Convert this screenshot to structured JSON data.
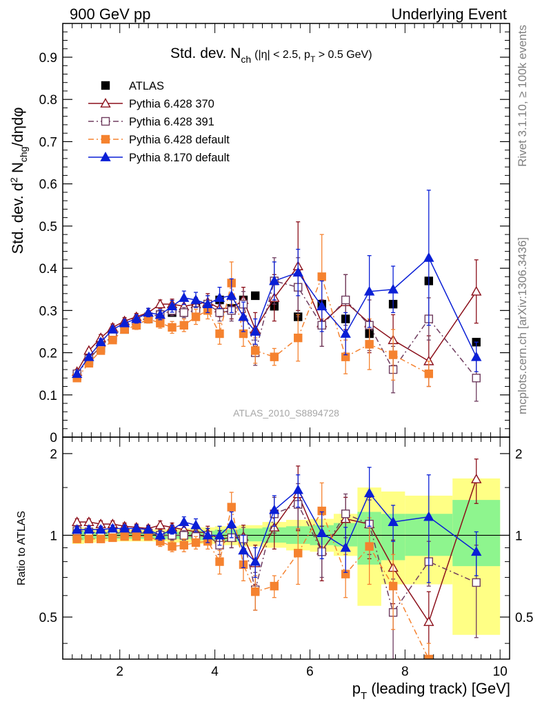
{
  "header": {
    "left": "900 GeV pp",
    "right": "Underlying Event"
  },
  "side_labels": {
    "rivet": "Rivet 3.1.10, ≥ 100k events",
    "mcplots": "mcplots.cern.ch [arXiv:1306.3436]"
  },
  "chart_data": [
    {
      "type": "scatter",
      "panel": "main",
      "title_main": "Std. dev. N",
      "title_sub": "ch",
      "title_cond": "(|η| < 2.5, p",
      "title_cond_sub": "T",
      "title_cond_end": " > 0.5 GeV)",
      "ylabel_parts": [
        "Std. dev. d",
        "2",
        " N",
        "chg",
        "/dηdφ"
      ],
      "xlim": [
        0.8,
        10.2
      ],
      "ylim": [
        0,
        0.98
      ],
      "yticks": [
        0,
        0.1,
        0.2,
        0.3,
        0.4,
        0.5,
        0.6,
        0.7,
        0.8,
        0.9
      ],
      "ytick_labels": [
        "0",
        "0.1",
        "0.2",
        "0.3",
        "0.4",
        "0.5",
        "0.6",
        "0.7",
        "0.8",
        "0.9"
      ],
      "watermark": "ATLAS_2010_S8894728",
      "legend": [
        {
          "key": "atlas",
          "label": "ATLAS"
        },
        {
          "key": "p370",
          "label": "Pythia 6.428 370"
        },
        {
          "key": "p391",
          "label": "Pythia 6.428 391"
        },
        {
          "key": "p6def",
          "label": "Pythia 6.428 default"
        },
        {
          "key": "p8def",
          "label": "Pythia 8.170 default"
        }
      ],
      "series": [
        {
          "key": "atlas",
          "name": "ATLAS",
          "color": "#000000",
          "marker": "square-filled",
          "line": "none",
          "x": [
            1.1,
            1.35,
            1.6,
            1.85,
            2.1,
            2.35,
            2.6,
            2.85,
            3.1,
            3.35,
            3.6,
            3.85,
            4.1,
            4.35,
            4.6,
            4.85,
            5.25,
            5.75,
            6.25,
            6.75,
            7.25,
            7.75,
            8.5,
            9.5
          ],
          "y": [
            0.145,
            0.18,
            0.21,
            0.235,
            0.255,
            0.265,
            0.28,
            0.29,
            0.295,
            0.295,
            0.305,
            0.315,
            0.325,
            0.305,
            0.325,
            0.335,
            0.31,
            0.285,
            0.315,
            0.28,
            0.245,
            0.315,
            0.37,
            0.225
          ],
          "err": [
            0,
            0,
            0,
            0,
            0,
            0,
            0,
            0,
            0,
            0,
            0,
            0,
            0,
            0,
            0,
            0,
            0,
            0,
            0,
            0,
            0,
            0,
            0,
            0
          ]
        },
        {
          "key": "p370",
          "name": "Pythia 6.428 370",
          "color": "#8b0f1a",
          "marker": "triangle-open",
          "line": "solid",
          "x": [
            1.1,
            1.35,
            1.6,
            1.85,
            2.1,
            2.35,
            2.6,
            2.85,
            3.1,
            3.35,
            3.6,
            3.85,
            4.1,
            4.35,
            4.6,
            4.85,
            5.25,
            5.75,
            6.25,
            6.75,
            7.25,
            7.75,
            8.5,
            9.5
          ],
          "y": [
            0.155,
            0.205,
            0.235,
            0.26,
            0.275,
            0.285,
            0.295,
            0.315,
            0.315,
            0.31,
            0.315,
            0.32,
            0.305,
            0.305,
            0.325,
            0.255,
            0.33,
            0.405,
            0.27,
            0.32,
            0.27,
            0.23,
            0.18,
            0.345
          ],
          "err": [
            0.005,
            0.005,
            0.008,
            0.008,
            0.008,
            0.008,
            0.01,
            0.01,
            0.012,
            0.012,
            0.015,
            0.02,
            0.02,
            0.025,
            0.03,
            0.04,
            0.055,
            0.105,
            0.055,
            0.065,
            0.07,
            0.06,
            0.06,
            0.075
          ]
        },
        {
          "key": "p391",
          "name": "Pythia 6.428 391",
          "color": "#6e3b5e",
          "marker": "square-open",
          "line": "dashdot",
          "x": [
            1.1,
            1.35,
            1.6,
            1.85,
            2.1,
            2.35,
            2.6,
            2.85,
            3.1,
            3.35,
            3.6,
            3.85,
            4.1,
            4.35,
            4.6,
            4.85,
            5.25,
            5.75,
            6.25,
            6.75,
            7.25,
            7.75,
            8.5,
            9.5
          ],
          "y": [
            0.15,
            0.185,
            0.215,
            0.24,
            0.26,
            0.27,
            0.285,
            0.29,
            0.3,
            0.295,
            0.3,
            0.315,
            0.295,
            0.3,
            0.315,
            0.2,
            0.37,
            0.355,
            0.265,
            0.325,
            0.265,
            0.16,
            0.28,
            0.14
          ],
          "err": [
            0.005,
            0.005,
            0.008,
            0.008,
            0.008,
            0.008,
            0.01,
            0.01,
            0.012,
            0.012,
            0.015,
            0.02,
            0.02,
            0.025,
            0.03,
            0.03,
            0.055,
            0.07,
            0.05,
            0.06,
            0.06,
            0.055,
            0.05,
            0.055
          ]
        },
        {
          "key": "p6def",
          "name": "Pythia 6.428 default",
          "color": "#f5822f",
          "marker": "square-filled",
          "line": "dashdot",
          "x": [
            1.1,
            1.35,
            1.6,
            1.85,
            2.1,
            2.35,
            2.6,
            2.85,
            3.1,
            3.35,
            3.6,
            3.85,
            4.1,
            4.35,
            4.6,
            4.85,
            5.25,
            5.75,
            6.25,
            6.75,
            7.25,
            7.75,
            8.5,
            9.5
          ],
          "y": [
            0.14,
            0.175,
            0.205,
            0.23,
            0.255,
            0.265,
            0.28,
            0.27,
            0.26,
            0.265,
            0.285,
            0.3,
            0.245,
            0.365,
            0.245,
            0.205,
            0.19,
            0.235,
            0.38,
            0.19,
            0.22,
            0.195,
            0.15,
            null
          ],
          "err": [
            0.005,
            0.005,
            0.008,
            0.008,
            0.008,
            0.01,
            0.01,
            0.012,
            0.014,
            0.015,
            0.018,
            0.02,
            0.025,
            0.05,
            0.03,
            0.03,
            0.02,
            0.055,
            0.1,
            0.04,
            0.06,
            0.06,
            0.03,
            0
          ]
        },
        {
          "key": "p8def",
          "name": "Pythia 8.170 default",
          "color": "#0a1fd6",
          "marker": "triangle-filled",
          "line": "solid",
          "x": [
            1.1,
            1.35,
            1.6,
            1.85,
            2.1,
            2.35,
            2.6,
            2.85,
            3.1,
            3.35,
            3.6,
            3.85,
            4.1,
            4.35,
            4.6,
            4.85,
            5.25,
            5.75,
            6.25,
            6.75,
            7.25,
            7.75,
            8.5,
            9.5
          ],
          "y": [
            0.15,
            0.19,
            0.225,
            0.255,
            0.27,
            0.28,
            0.295,
            0.29,
            0.31,
            0.33,
            0.325,
            0.315,
            0.33,
            0.335,
            0.285,
            0.25,
            0.37,
            0.39,
            0.31,
            0.245,
            0.345,
            0.35,
            0.425,
            0.19
          ],
          "err": [
            0.005,
            0.005,
            0.008,
            0.008,
            0.008,
            0.01,
            0.01,
            0.012,
            0.014,
            0.016,
            0.018,
            0.02,
            0.025,
            0.04,
            0.035,
            0.03,
            0.045,
            0.055,
            0.06,
            0.05,
            0.085,
            0.055,
            0.16,
            0.035
          ]
        }
      ]
    },
    {
      "type": "scatter",
      "panel": "ratio",
      "ylabel": "Ratio to ATLAS",
      "xlabel_main": "p",
      "xlabel_sub": "T",
      "xlabel_rest": " (leading track) [GeV]",
      "xlim": [
        0.8,
        10.2
      ],
      "ylim": [
        0.35,
        2.3
      ],
      "xticks": [
        2,
        4,
        6,
        8,
        10
      ],
      "xtick_labels": [
        "2",
        "4",
        "6",
        "8",
        "10"
      ],
      "yticks": [
        0.5,
        1,
        2
      ],
      "ytick_labels": [
        "0.5",
        "1",
        "2"
      ],
      "bands": [
        {
          "x0": 1.0,
          "x1": 1.25,
          "y0": 0.93,
          "y1": 1.07,
          "g0": 0.96,
          "g1": 1.04
        },
        {
          "x0": 1.25,
          "x1": 1.5,
          "y0": 0.94,
          "y1": 1.06,
          "g0": 0.97,
          "g1": 1.03
        },
        {
          "x0": 1.5,
          "x1": 3.0,
          "y0": 0.95,
          "y1": 1.05,
          "g0": 0.97,
          "g1": 1.03
        },
        {
          "x0": 3.0,
          "x1": 3.5,
          "y0": 0.94,
          "y1": 1.06,
          "g0": 0.97,
          "g1": 1.03
        },
        {
          "x0": 3.5,
          "x1": 4.0,
          "y0": 0.93,
          "y1": 1.07,
          "g0": 0.96,
          "g1": 1.04
        },
        {
          "x0": 4.0,
          "x1": 4.5,
          "y0": 0.92,
          "y1": 1.08,
          "g0": 0.95,
          "g1": 1.05
        },
        {
          "x0": 4.5,
          "x1": 5.0,
          "y0": 0.91,
          "y1": 1.09,
          "g0": 0.95,
          "g1": 1.06
        },
        {
          "x0": 5.0,
          "x1": 5.5,
          "y0": 0.9,
          "y1": 1.12,
          "g0": 0.94,
          "g1": 1.07
        },
        {
          "x0": 5.5,
          "x1": 6.0,
          "y0": 0.88,
          "y1": 1.14,
          "g0": 0.93,
          "g1": 1.08
        },
        {
          "x0": 6.0,
          "x1": 6.5,
          "y0": 0.87,
          "y1": 1.15,
          "g0": 0.92,
          "g1": 1.09
        },
        {
          "x0": 6.5,
          "x1": 7.0,
          "y0": 0.84,
          "y1": 1.2,
          "g0": 0.91,
          "g1": 1.11
        },
        {
          "x0": 7.0,
          "x1": 7.5,
          "y0": 0.55,
          "y1": 1.5,
          "g0": 0.78,
          "g1": 1.22
        },
        {
          "x0": 7.5,
          "x1": 8.0,
          "y0": 0.66,
          "y1": 1.45,
          "g0": 0.81,
          "g1": 1.2
        },
        {
          "x0": 8.0,
          "x1": 9.0,
          "y0": 0.66,
          "y1": 1.4,
          "g0": 0.84,
          "g1": 1.2
        },
        {
          "x0": 9.0,
          "x1": 10.0,
          "y0": 0.43,
          "y1": 1.62,
          "g0": 0.77,
          "g1": 1.35
        }
      ],
      "series": [
        {
          "key": "p370",
          "color": "#8b0f1a",
          "marker": "triangle-open",
          "line": "solid",
          "x": [
            1.1,
            1.35,
            1.6,
            1.85,
            2.1,
            2.35,
            2.6,
            2.85,
            3.1,
            3.35,
            3.6,
            3.85,
            4.1,
            4.35,
            4.6,
            4.85,
            5.25,
            5.75,
            6.25,
            6.75,
            7.25,
            7.75,
            8.5,
            9.5
          ],
          "y": [
            1.12,
            1.12,
            1.1,
            1.1,
            1.08,
            1.07,
            1.06,
            1.09,
            1.07,
            1.05,
            1.03,
            1.02,
            0.97,
            0.98,
            0.99,
            0.79,
            1.07,
            1.42,
            0.88,
            1.15,
            1.1,
            0.76,
            0.48,
            1.61
          ],
          "err": [
            0.03,
            0.03,
            0.03,
            0.03,
            0.03,
            0.03,
            0.03,
            0.04,
            0.04,
            0.04,
            0.05,
            0.06,
            0.07,
            0.08,
            0.1,
            0.13,
            0.18,
            0.38,
            0.2,
            0.23,
            0.28,
            0.2,
            0.14,
            0.3
          ]
        },
        {
          "key": "p391",
          "color": "#6e3b5e",
          "marker": "square-open",
          "line": "dashdot",
          "x": [
            1.1,
            1.35,
            1.6,
            1.85,
            2.1,
            2.35,
            2.6,
            2.85,
            3.1,
            3.35,
            3.6,
            3.85,
            4.1,
            4.35,
            4.6,
            4.85,
            5.25,
            5.75,
            6.25,
            6.75,
            7.25,
            7.75,
            8.5,
            9.5
          ],
          "y": [
            1.04,
            1.03,
            1.02,
            1.02,
            1.02,
            1.02,
            1.02,
            1.0,
            1.0,
            1.0,
            0.99,
            1.0,
            0.92,
            0.98,
            0.97,
            0.63,
            1.2,
            1.3,
            0.87,
            1.2,
            1.1,
            0.52,
            0.8,
            0.67
          ],
          "err": [
            0.03,
            0.03,
            0.03,
            0.03,
            0.03,
            0.03,
            0.03,
            0.04,
            0.04,
            0.04,
            0.05,
            0.06,
            0.07,
            0.08,
            0.1,
            0.1,
            0.18,
            0.25,
            0.17,
            0.22,
            0.25,
            0.17,
            0.15,
            0.25
          ]
        },
        {
          "key": "p6def",
          "color": "#f5822f",
          "marker": "square-filled",
          "line": "dashdot",
          "x": [
            1.1,
            1.35,
            1.6,
            1.85,
            2.1,
            2.35,
            2.6,
            2.85,
            3.1,
            3.35,
            3.6,
            3.85,
            4.1,
            4.35,
            4.6,
            4.85,
            5.25,
            5.75,
            6.25,
            6.75,
            7.25,
            7.75,
            8.5
          ],
          "y": [
            0.97,
            0.97,
            0.97,
            0.98,
            0.99,
            0.99,
            0.99,
            0.95,
            0.91,
            0.92,
            0.94,
            0.95,
            0.8,
            1.27,
            0.78,
            0.62,
            0.65,
            0.86,
            1.23,
            0.72,
            0.91,
            0.65,
            0.35
          ],
          "err": [
            0.03,
            0.03,
            0.03,
            0.03,
            0.03,
            0.03,
            0.03,
            0.04,
            0.04,
            0.05,
            0.05,
            0.06,
            0.08,
            0.17,
            0.1,
            0.09,
            0.06,
            0.2,
            0.33,
            0.13,
            0.25,
            0.2,
            0.05
          ]
        },
        {
          "key": "p8def",
          "color": "#0a1fd6",
          "marker": "triangle-filled",
          "line": "solid",
          "x": [
            1.1,
            1.35,
            1.6,
            1.85,
            2.1,
            2.35,
            2.6,
            2.85,
            3.1,
            3.35,
            3.6,
            3.85,
            4.1,
            4.35,
            4.6,
            4.85,
            5.25,
            5.75,
            6.25,
            6.75,
            7.25,
            7.75,
            8.5,
            9.5
          ],
          "y": [
            1.05,
            1.05,
            1.05,
            1.06,
            1.06,
            1.06,
            1.05,
            1.0,
            1.05,
            1.12,
            1.09,
            1.0,
            1.0,
            1.1,
            0.88,
            0.8,
            1.24,
            1.47,
            1.02,
            0.9,
            1.43,
            1.12,
            1.17,
            0.87
          ],
          "err": [
            0.03,
            0.03,
            0.03,
            0.03,
            0.03,
            0.03,
            0.03,
            0.04,
            0.04,
            0.05,
            0.06,
            0.06,
            0.08,
            0.12,
            0.12,
            0.1,
            0.16,
            0.2,
            0.2,
            0.17,
            0.35,
            0.17,
            0.5,
            0.16
          ]
        }
      ]
    }
  ]
}
